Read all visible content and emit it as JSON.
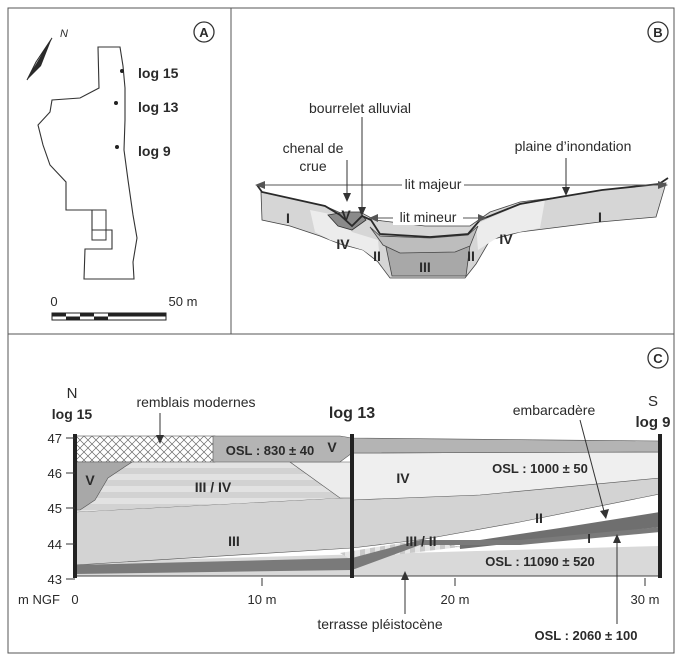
{
  "panel_a": {
    "badge": "A",
    "north": "N",
    "logs": [
      "log 15",
      "log 13",
      "log 9"
    ],
    "scale_start": "0",
    "scale_end": "50 m"
  },
  "panel_b": {
    "badge": "B",
    "labels": {
      "bourrelet": "bourrelet alluvial",
      "chenal_line1": "chenal de",
      "chenal_line2": "crue",
      "plaine": "plaine d’inondation",
      "lit_majeur": "lit majeur",
      "lit_mineur": "lit mineur"
    },
    "units": [
      "I",
      "V",
      "IV",
      "II",
      "III",
      "II",
      "IV",
      "I"
    ]
  },
  "panel_c": {
    "badge": "C",
    "north_label": "N",
    "south_label": "S",
    "log_left": "log 15",
    "log_mid": "log 13",
    "log_right": "log 9",
    "remblais": "remblais modernes",
    "embarcadere": "embarcadère",
    "terrasse": "terrasse pléistocène",
    "osl": [
      "OSL : 830 ± 40",
      "OSL : 1000 ± 50",
      "OSL : 11090 ± 520",
      "OSL : 2060  ± 100"
    ],
    "units": [
      "V",
      "V",
      "III / IV",
      "IV",
      "III",
      "III / II",
      "II",
      "I"
    ],
    "y_ticks": [
      "47",
      "46",
      "45",
      "44",
      "43"
    ],
    "x_ticks": [
      "0",
      "10 m",
      "20 m",
      "30 m"
    ],
    "y_unit": "m NGF"
  }
}
